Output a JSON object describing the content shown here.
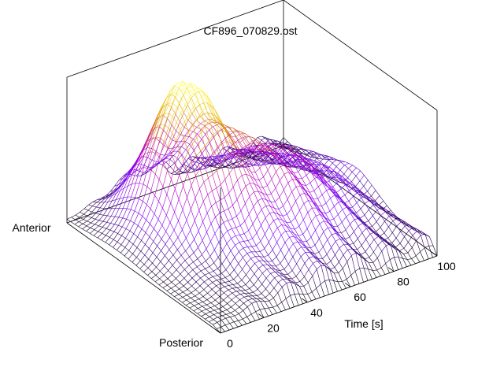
{
  "chart_data": {
    "type": "surface",
    "title": "CF896_070829.ost",
    "xlabel": "Time [s]",
    "ylabel_top": "Anterior",
    "ylabel_bottom": "Posterior",
    "x_ticks": [
      "0",
      "20",
      "40",
      "60",
      "80",
      "100"
    ],
    "xlim": [
      0,
      100
    ],
    "y_range": [
      "Posterior",
      "Anterior"
    ],
    "z_relative_range": [
      0,
      1
    ],
    "colormap": [
      "#000000",
      "#7a00ff",
      "#c000c0",
      "#e0a000",
      "#ffff60"
    ],
    "grid": false,
    "surface_description_points": [
      {
        "t": 0,
        "pos": 1.0,
        "z": 0.02
      },
      {
        "t": 35,
        "pos": 0.75,
        "z": 0.85
      },
      {
        "t": 45,
        "pos": 0.55,
        "z": 1.0
      },
      {
        "t": 65,
        "pos": 0.35,
        "z": 0.55
      },
      {
        "t": 100,
        "pos": 0.5,
        "z": 0.15
      }
    ]
  }
}
